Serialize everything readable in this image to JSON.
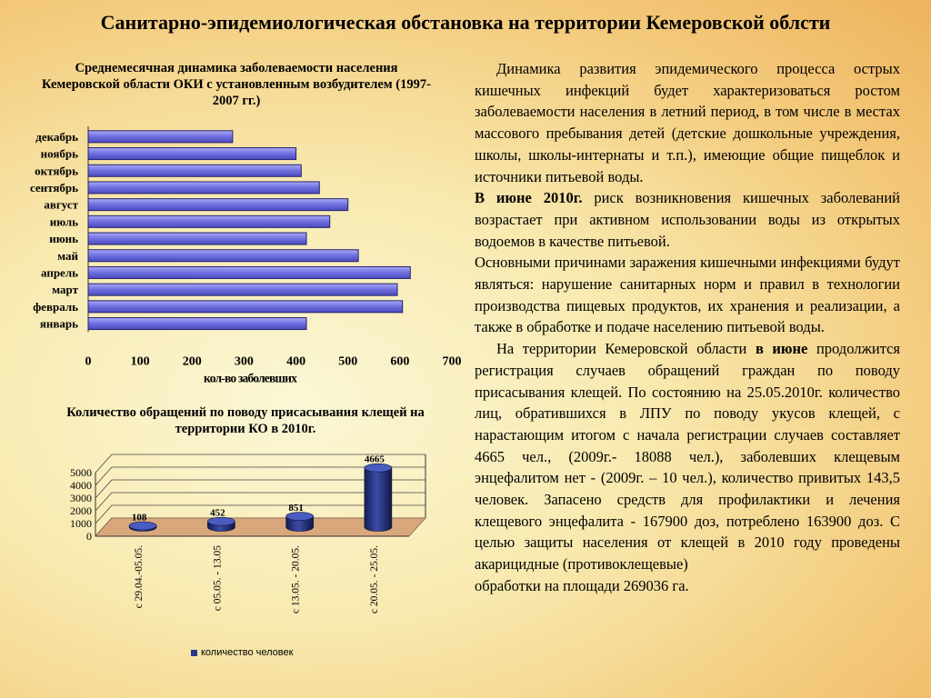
{
  "title": "Санитарно-эпидемиологическая обстановка на территории Кемеровской облсти",
  "chart_data": [
    {
      "type": "bar",
      "orientation": "horizontal",
      "title": "Среднемесячная динамика заболеваемости населения Кемеровской области ОКИ с установленным возбудителем (1997-2007 гг.)",
      "categories": [
        "январь",
        "февраль",
        "март",
        "апрель",
        "май",
        "июнь",
        "июль",
        "август",
        "сентябрь",
        "октябрь",
        "ноябрь",
        "декабрь"
      ],
      "values": [
        420,
        605,
        595,
        620,
        520,
        420,
        465,
        500,
        445,
        410,
        400,
        278
      ],
      "xlabel": "кол-во заболевших",
      "xlim": [
        0,
        700
      ],
      "xticks": [
        "0",
        "100",
        "200",
        "300",
        "400",
        "500",
        "600",
        "700"
      ],
      "grid": false,
      "bar_color": "#6f6fe0"
    },
    {
      "type": "bar",
      "style": "3d-cylinder",
      "title": "Количество обращений по поводу присасывания клещей на территории КО в 2010г.",
      "categories": [
        "с 29.04.-05.05.",
        "с 05.05. - 13.05",
        "с 13.05. - 20.05.",
        "с 20.05. - 25.05."
      ],
      "series": [
        {
          "name": "количество человек",
          "values": [
            108,
            452,
            851,
            4665
          ]
        }
      ],
      "data_labels": [
        "108",
        "452",
        "851",
        "4665"
      ],
      "ylim": [
        0,
        5000
      ],
      "yticks": [
        "0",
        "1000",
        "2000",
        "3000",
        "4000",
        "5000"
      ],
      "grid": true,
      "legend": "bottom",
      "bar_color": "#2b3a8a"
    }
  ],
  "text": {
    "p1": "Динамика развития эпидемического процесса острых кишечных инфекций будет характеризоваться ростом заболеваемости населения в летний период, в том числе в местах массового пребывания детей (детские дошкольные учреждения, школы, школы-интернаты и т.п.), имеющие общие пищеблок и источники питьевой воды.",
    "p2_bold": "В июне 2010г.",
    "p2": " риск возникновения кишечных заболеваний возрастает при активном использовании воды из открытых водоемов в качестве питьевой.",
    "p3": "Основными причинами заражения кишечными инфекциями будут являться: нарушение санитарных норм и правил в технологии производства пищевых продуктов, их хранения и реализации, а также в обработке и подаче населению питьевой воды.",
    "p4_a": "На территории Кемеровской области ",
    "p4_bold": "в июне",
    "p4_b": " продолжится регистрация случаев обращений граждан по поводу присасывания клещей. По состоянию на 25.05.2010г. количество лиц, обратившихся в ЛПУ по поводу укусов клещей, с нарастающим итогом с начала регистрации случаев составляет 4665 чел., (2009г.- 18088 чел.), заболевших клещевым энцефалитом нет - (2009г. – 10 чел.), количество привитых 143,5 человек. Запасено средств для профилактики и лечения клещевого энцефалита - 167900 доз, потреблено 163900 доз. С целью защиты населения от клещей в 2010 году проведены акарицидные (противоклещевые)",
    "p4_end": "обработки на площади 269036 га."
  }
}
